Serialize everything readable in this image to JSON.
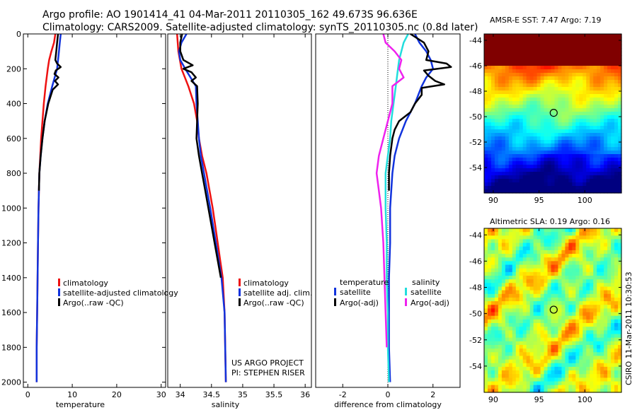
{
  "title_line1": "Argo profile: AO 1901414_41 04-Mar-2011 20110305_162 49.673S 96.636E",
  "title_line2": "Climatology: CARS2009. Satellite-adjusted climatology: synTS_20110305.nc (0.8d later)",
  "colors": {
    "red": "#ee1111",
    "blue": "#1133dd",
    "black": "#000000",
    "cyan": "#22dddd",
    "magenta": "#ee22ee"
  },
  "chart_data": [
    {
      "type": "line",
      "name_key": "temperature",
      "xlabel": "temperature",
      "ylabel": "",
      "xlim": [
        -1,
        31
      ],
      "ylim": [
        2030,
        0
      ],
      "xticks": [
        0,
        10,
        20,
        30
      ],
      "yticks": [
        0,
        200,
        400,
        600,
        800,
        1000,
        1200,
        1400,
        1600,
        1800,
        2000
      ],
      "legend": [
        "climatology",
        "satellite-adjusted climatology",
        "Argo(..raw -QC)"
      ],
      "legend_position": "lower-middle",
      "series": [
        {
          "color": "red",
          "depth": [
            0,
            50,
            100,
            150,
            200,
            300,
            400,
            500,
            600,
            700,
            800,
            1000,
            1200,
            1400,
            1600,
            1800,
            2000
          ],
          "values": [
            6.2,
            5.9,
            5.3,
            4.8,
            4.5,
            4.0,
            3.6,
            3.3,
            3.0,
            2.8,
            2.6,
            2.4,
            2.3,
            2.2,
            2.1,
            2.0,
            2.0
          ]
        },
        {
          "color": "blue",
          "depth": [
            0,
            50,
            100,
            150,
            200,
            300,
            400,
            500,
            600,
            700,
            800,
            1000,
            1200,
            1400,
            1600,
            1800,
            2000
          ],
          "values": [
            7.4,
            7.2,
            7.0,
            6.8,
            6.6,
            5.5,
            4.5,
            3.8,
            3.3,
            2.9,
            2.6,
            2.4,
            2.3,
            2.2,
            2.1,
            2.0,
            2.0
          ]
        },
        {
          "color": "black",
          "depth": [
            0,
            50,
            100,
            150,
            170,
            190,
            210,
            230,
            250,
            270,
            290,
            320,
            400,
            500,
            600,
            700,
            800,
            900
          ],
          "values": [
            6.8,
            6.6,
            6.4,
            6.2,
            6.6,
            7.4,
            6.3,
            6.0,
            6.9,
            6.1,
            6.8,
            5.6,
            4.6,
            3.8,
            3.3,
            2.9,
            2.6,
            2.5
          ]
        }
      ]
    },
    {
      "type": "line",
      "name_key": "salinity",
      "xlabel": "salinity",
      "ylabel": "",
      "xlim": [
        33.8,
        36.1
      ],
      "ylim": [
        2030,
        0
      ],
      "xticks": [
        34,
        34.5,
        35,
        35.5,
        36
      ],
      "tick_labels": [
        "34",
        "34.5",
        "35",
        "35.5",
        "36"
      ],
      "legend": [
        "climatology",
        "satellite adj. clim.",
        "Argo(..raw -QC)"
      ],
      "legend_position": "lower-middle",
      "annotation": [
        "US ARGO PROJECT",
        "PI: STEPHEN RISER"
      ],
      "series": [
        {
          "color": "red",
          "depth": [
            0,
            100,
            200,
            300,
            400,
            500,
            600,
            700,
            800,
            900,
            1000,
            1100,
            1200,
            1300,
            1400,
            1600,
            1800,
            2000
          ],
          "values": [
            33.95,
            33.97,
            34.02,
            34.13,
            34.22,
            34.27,
            34.3,
            34.35,
            34.42,
            34.47,
            34.52,
            34.56,
            34.6,
            34.64,
            34.68,
            34.71,
            34.72,
            34.73
          ]
        },
        {
          "color": "blue",
          "depth": [
            0,
            50,
            100,
            150,
            200,
            300,
            400,
            500,
            600,
            700,
            800,
            900,
            1000,
            1200,
            1400,
            1600,
            1800,
            2000
          ],
          "values": [
            34.1,
            34.02,
            33.98,
            34.0,
            34.08,
            34.25,
            34.26,
            34.28,
            34.3,
            34.33,
            34.38,
            34.43,
            34.48,
            34.57,
            34.66,
            34.71,
            34.72,
            34.73
          ]
        },
        {
          "color": "black",
          "depth": [
            0,
            50,
            100,
            150,
            180,
            200,
            220,
            250,
            270,
            300,
            400,
            500,
            600,
            700,
            800,
            900,
            1000,
            1200,
            1400
          ],
          "values": [
            34.03,
            34.0,
            34.0,
            34.05,
            34.2,
            34.05,
            34.18,
            34.25,
            34.18,
            34.27,
            34.28,
            34.27,
            34.26,
            34.3,
            34.35,
            34.4,
            34.45,
            34.55,
            34.65
          ]
        }
      ]
    },
    {
      "type": "line",
      "name_key": "difference",
      "xlabel": "difference from climatology",
      "ylabel": "",
      "xlim": [
        -3.2,
        3.2
      ],
      "ylim": [
        2030,
        0
      ],
      "xticks": [
        -2,
        0,
        2
      ],
      "legend": [
        {
          "header": "temperature",
          "items": [
            "satellite",
            "Argo(-adj)"
          ]
        },
        {
          "header": "salinity",
          "items": [
            "satellite",
            "Argo(-adj)"
          ]
        }
      ],
      "legend_position": "lower-middle",
      "series": [
        {
          "color": "blue",
          "depth": [
            0,
            50,
            100,
            150,
            200,
            250,
            300,
            400,
            500,
            600,
            700,
            800,
            900,
            1000,
            1200,
            1400,
            1600,
            1800,
            2000
          ],
          "values": [
            1.2,
            1.4,
            1.7,
            1.9,
            2.0,
            1.7,
            1.5,
            1.2,
            0.8,
            0.5,
            0.3,
            0.2,
            0.15,
            0.1,
            0.1,
            0.05,
            0.05,
            0.05,
            0.1
          ]
        },
        {
          "color": "black",
          "depth": [
            0,
            50,
            100,
            150,
            170,
            190,
            210,
            240,
            270,
            290,
            310,
            350,
            400,
            450,
            500,
            550,
            600,
            700,
            800,
            900
          ],
          "values": [
            1.0,
            1.6,
            1.8,
            1.7,
            2.6,
            2.8,
            1.6,
            1.8,
            2.1,
            2.5,
            1.5,
            1.5,
            1.2,
            1.0,
            0.5,
            0.3,
            0.2,
            0.1,
            0.05,
            0.05
          ]
        },
        {
          "color": "cyan",
          "depth": [
            0,
            50,
            100,
            150,
            200,
            300,
            400,
            500,
            600,
            700,
            800,
            900,
            1000,
            1200,
            1400,
            1600,
            1800,
            2000
          ],
          "values": [
            0.9,
            0.7,
            0.6,
            0.5,
            0.45,
            0.35,
            0.25,
            0.15,
            0.1,
            0.0,
            -0.1,
            -0.1,
            -0.1,
            -0.05,
            -0.05,
            0.0,
            0.0,
            0.05
          ]
        },
        {
          "color": "magenta",
          "depth": [
            0,
            50,
            100,
            150,
            200,
            250,
            300,
            400,
            500,
            600,
            700,
            800,
            900,
            1000,
            1200,
            1400,
            1600,
            1800
          ],
          "values": [
            -0.2,
            -0.1,
            0.3,
            0.6,
            0.5,
            0.7,
            0.2,
            0.2,
            0.0,
            -0.2,
            -0.4,
            -0.5,
            -0.4,
            -0.3,
            -0.2,
            -0.15,
            -0.1,
            -0.05
          ]
        }
      ]
    },
    {
      "type": "heatmap",
      "name_key": "sst_map",
      "title": "AMSR-E SST: 7.47 Argo: 7.19",
      "xlim": [
        89,
        104
      ],
      "ylim": [
        -56,
        -43.5
      ],
      "xticks": [
        90,
        95,
        100
      ],
      "yticks": [
        -44,
        -46,
        -48,
        -50,
        -52,
        -54
      ],
      "marker": {
        "lon": 96.6,
        "lat": -49.7
      }
    },
    {
      "type": "heatmap",
      "name_key": "sla_map",
      "title": "Altimetric SLA: 0.19 Argo: 0.16",
      "xlim": [
        89,
        104
      ],
      "ylim": [
        -56,
        -43.5
      ],
      "xticks": [
        90,
        95,
        100
      ],
      "yticks": [
        -44,
        -46,
        -48,
        -50,
        -52,
        -54
      ],
      "marker": {
        "lon": 96.6,
        "lat": -49.7
      }
    }
  ],
  "side_stamp": "CSIRO 11-Mar-2011 10:30:53"
}
